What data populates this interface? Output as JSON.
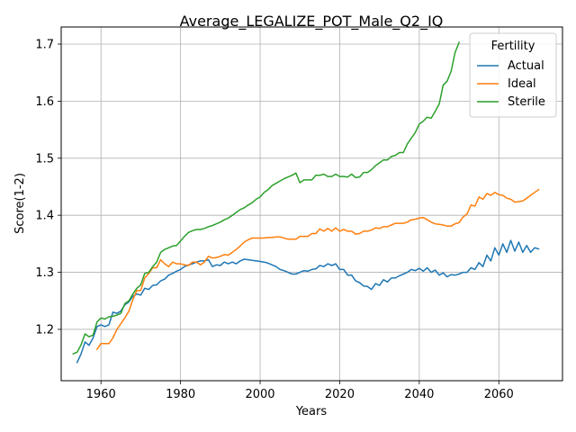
{
  "chart_data": {
    "type": "line",
    "title": "Average_LEGALIZE_POT_Male_Q2_IQ",
    "xlabel": "Years",
    "ylabel": "Score(1-2)",
    "xlim": [
      1950,
      2076
    ],
    "ylim": [
      1.11,
      1.73
    ],
    "xticks": [
      1960,
      1980,
      2000,
      2020,
      2040,
      2060
    ],
    "yticks": [
      1.2,
      1.3,
      1.4,
      1.5,
      1.6,
      1.7
    ],
    "grid": true,
    "legend": {
      "title": "Fertility",
      "placement": "top-right"
    },
    "series": [
      {
        "name": "Actual",
        "color": "#1f77b4",
        "x": [
          1954,
          1955,
          1956,
          1957,
          1958,
          1959,
          1960,
          1961,
          1962,
          1963,
          1964,
          1965,
          1966,
          1967,
          1968,
          1969,
          1970,
          1971,
          1972,
          1973,
          1974,
          1975,
          1976,
          1977,
          1978,
          1979,
          1980,
          1981,
          1982,
          1983,
          1984,
          1985,
          1986,
          1987,
          1988,
          1989,
          1990,
          1991,
          1992,
          1993,
          1994,
          1995,
          1996,
          1997,
          1998,
          1999,
          2000,
          2001,
          2002,
          2003,
          2004,
          2005,
          2006,
          2007,
          2008,
          2009,
          2010,
          2011,
          2012,
          2013,
          2014,
          2015,
          2016,
          2017,
          2018,
          2019,
          2020,
          2021,
          2022,
          2023,
          2024,
          2025,
          2026,
          2027,
          2028,
          2029,
          2030,
          2031,
          2032,
          2033,
          2034,
          2035,
          2036,
          2037,
          2038,
          2039,
          2040,
          2041,
          2042,
          2043,
          2044,
          2045,
          2046,
          2047,
          2048,
          2049,
          2050,
          2051,
          2052,
          2053,
          2054,
          2055,
          2056,
          2057,
          2058,
          2059,
          2060,
          2061,
          2062,
          2063,
          2064,
          2065,
          2066,
          2067,
          2068,
          2069,
          2070
        ],
        "values": [
          1.142,
          1.157,
          1.178,
          1.172,
          1.185,
          1.205,
          1.208,
          1.205,
          1.208,
          1.23,
          1.228,
          1.232,
          1.243,
          1.248,
          1.258,
          1.262,
          1.26,
          1.272,
          1.27,
          1.277,
          1.278,
          1.285,
          1.288,
          1.295,
          1.298,
          1.302,
          1.305,
          1.31,
          1.313,
          1.315,
          1.318,
          1.32,
          1.32,
          1.322,
          1.31,
          1.313,
          1.312,
          1.318,
          1.315,
          1.318,
          1.315,
          1.32,
          1.323,
          1.322,
          1.321,
          1.32,
          1.319,
          1.318,
          1.316,
          1.313,
          1.31,
          1.305,
          1.303,
          1.3,
          1.297,
          1.297,
          1.3,
          1.303,
          1.302,
          1.305,
          1.306,
          1.312,
          1.31,
          1.315,
          1.312,
          1.315,
          1.305,
          1.305,
          1.295,
          1.295,
          1.285,
          1.282,
          1.276,
          1.275,
          1.27,
          1.28,
          1.277,
          1.287,
          1.283,
          1.29,
          1.29,
          1.294,
          1.297,
          1.3,
          1.305,
          1.303,
          1.307,
          1.302,
          1.308,
          1.3,
          1.304,
          1.295,
          1.299,
          1.292,
          1.296,
          1.295,
          1.297,
          1.3,
          1.3,
          1.308,
          1.305,
          1.317,
          1.31,
          1.33,
          1.32,
          1.343,
          1.33,
          1.35,
          1.335,
          1.356,
          1.337,
          1.353,
          1.335,
          1.347,
          1.335,
          1.343,
          1.341
        ]
      },
      {
        "name": "Ideal",
        "color": "#ff7f0e",
        "x": [
          1959,
          1960,
          1961,
          1962,
          1963,
          1964,
          1965,
          1966,
          1967,
          1968,
          1969,
          1970,
          1971,
          1972,
          1973,
          1974,
          1975,
          1976,
          1977,
          1978,
          1979,
          1980,
          1981,
          1982,
          1983,
          1984,
          1985,
          1986,
          1987,
          1988,
          1989,
          1990,
          1991,
          1992,
          1993,
          1994,
          1995,
          1996,
          1997,
          1998,
          1999,
          2000,
          2001,
          2002,
          2003,
          2004,
          2005,
          2006,
          2007,
          2008,
          2009,
          2010,
          2011,
          2012,
          2013,
          2014,
          2015,
          2016,
          2017,
          2018,
          2019,
          2020,
          2021,
          2022,
          2023,
          2024,
          2025,
          2026,
          2027,
          2028,
          2029,
          2030,
          2031,
          2032,
          2033,
          2034,
          2035,
          2036,
          2037,
          2038,
          2039,
          2040,
          2041,
          2042,
          2043,
          2044,
          2045,
          2046,
          2047,
          2048,
          2049,
          2050,
          2051,
          2052,
          2053,
          2054,
          2055,
          2056,
          2057,
          2058,
          2059,
          2060,
          2061,
          2062,
          2063,
          2064,
          2065,
          2066,
          2067,
          2068,
          2069,
          2070
        ],
        "values": [
          1.165,
          1.175,
          1.175,
          1.175,
          1.185,
          1.2,
          1.21,
          1.22,
          1.232,
          1.252,
          1.268,
          1.268,
          1.29,
          1.298,
          1.308,
          1.308,
          1.322,
          1.315,
          1.31,
          1.318,
          1.315,
          1.315,
          1.313,
          1.312,
          1.318,
          1.318,
          1.313,
          1.318,
          1.328,
          1.325,
          1.326,
          1.328,
          1.331,
          1.33,
          1.335,
          1.34,
          1.346,
          1.353,
          1.357,
          1.36,
          1.36,
          1.36,
          1.36,
          1.361,
          1.361,
          1.362,
          1.362,
          1.36,
          1.358,
          1.358,
          1.358,
          1.363,
          1.363,
          1.363,
          1.368,
          1.368,
          1.376,
          1.372,
          1.377,
          1.372,
          1.378,
          1.372,
          1.375,
          1.372,
          1.372,
          1.367,
          1.368,
          1.372,
          1.372,
          1.374,
          1.378,
          1.377,
          1.38,
          1.38,
          1.383,
          1.386,
          1.386,
          1.386,
          1.388,
          1.392,
          1.393,
          1.395,
          1.396,
          1.392,
          1.388,
          1.385,
          1.384,
          1.383,
          1.381,
          1.381,
          1.385,
          1.387,
          1.397,
          1.402,
          1.418,
          1.416,
          1.432,
          1.428,
          1.438,
          1.435,
          1.44,
          1.436,
          1.435,
          1.43,
          1.428,
          1.423,
          1.424,
          1.425,
          1.43,
          1.435,
          1.44,
          1.445
        ]
      },
      {
        "name": "Sterile",
        "color": "#2ca02c",
        "x": [
          1953,
          1954,
          1955,
          1956,
          1957,
          1958,
          1959,
          1960,
          1961,
          1962,
          1963,
          1964,
          1965,
          1966,
          1967,
          1968,
          1969,
          1970,
          1971,
          1972,
          1973,
          1974,
          1975,
          1976,
          1977,
          1978,
          1979,
          1980,
          1981,
          1982,
          1983,
          1984,
          1985,
          1986,
          1987,
          1988,
          1989,
          1990,
          1991,
          1992,
          1993,
          1994,
          1995,
          1996,
          1997,
          1998,
          1999,
          2000,
          2001,
          2002,
          2003,
          2004,
          2005,
          2006,
          2007,
          2008,
          2009,
          2010,
          2011,
          2012,
          2013,
          2014,
          2015,
          2016,
          2017,
          2018,
          2019,
          2020,
          2021,
          2022,
          2023,
          2024,
          2025,
          2026,
          2027,
          2028,
          2029,
          2030,
          2031,
          2032,
          2033,
          2034,
          2035,
          2036,
          2037,
          2038,
          2039,
          2040,
          2041,
          2042,
          2043,
          2044,
          2045,
          2046,
          2047,
          2048,
          2049,
          2050
        ],
        "values": [
          1.157,
          1.16,
          1.173,
          1.192,
          1.187,
          1.19,
          1.213,
          1.22,
          1.218,
          1.222,
          1.223,
          1.225,
          1.228,
          1.245,
          1.25,
          1.262,
          1.272,
          1.278,
          1.298,
          1.3,
          1.31,
          1.318,
          1.335,
          1.34,
          1.343,
          1.346,
          1.347,
          1.355,
          1.363,
          1.37,
          1.373,
          1.375,
          1.375,
          1.377,
          1.38,
          1.382,
          1.385,
          1.388,
          1.392,
          1.395,
          1.4,
          1.405,
          1.41,
          1.413,
          1.418,
          1.422,
          1.428,
          1.432,
          1.44,
          1.445,
          1.452,
          1.456,
          1.46,
          1.464,
          1.467,
          1.47,
          1.474,
          1.457,
          1.462,
          1.462,
          1.462,
          1.47,
          1.47,
          1.472,
          1.468,
          1.468,
          1.472,
          1.468,
          1.468,
          1.467,
          1.472,
          1.466,
          1.467,
          1.475,
          1.475,
          1.48,
          1.487,
          1.492,
          1.497,
          1.497,
          1.503,
          1.505,
          1.51,
          1.51,
          1.525,
          1.535,
          1.545,
          1.56,
          1.565,
          1.572,
          1.57,
          1.582,
          1.595,
          1.628,
          1.635,
          1.652,
          1.685,
          1.703
        ]
      }
    ]
  }
}
